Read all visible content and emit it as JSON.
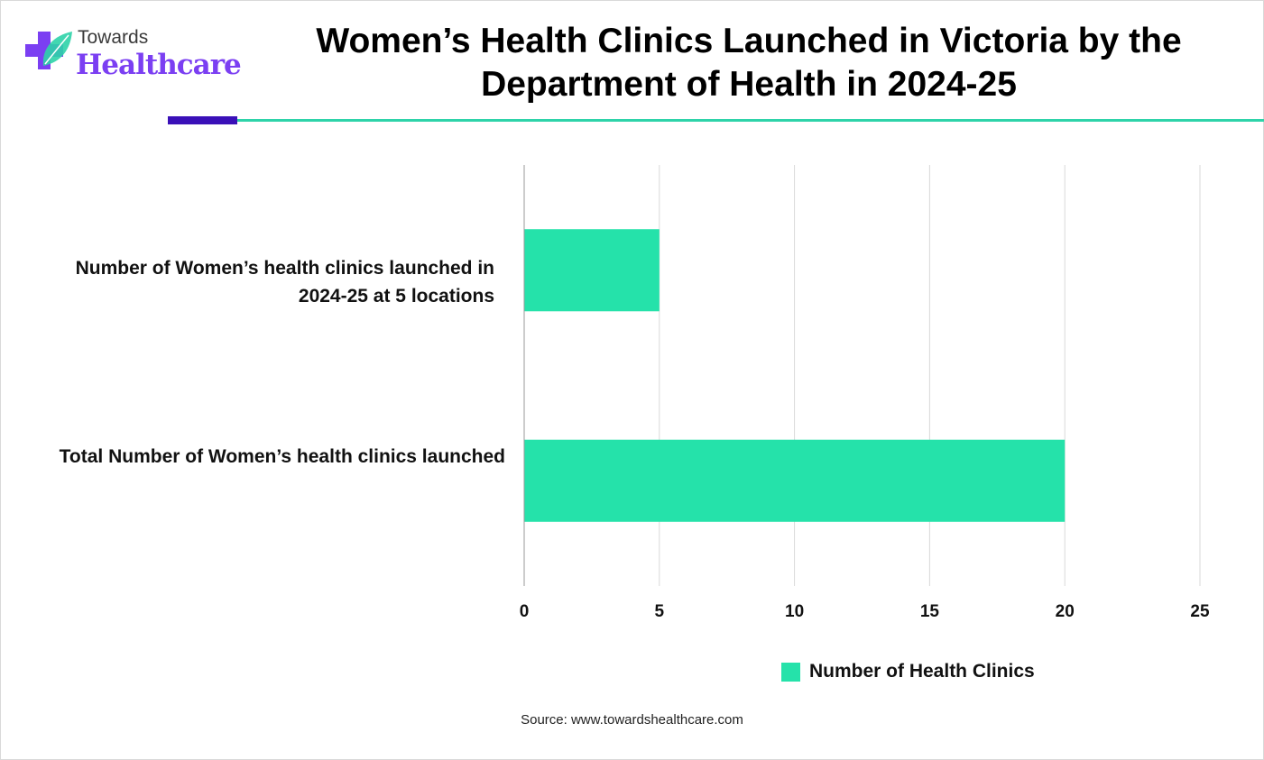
{
  "brand": {
    "line1": "Towards",
    "line2": "Healthcare",
    "colors": {
      "purple": "#7b3ff2",
      "teal": "#2ed3a9",
      "navy": "#3a10b8"
    }
  },
  "title": "Women’s Health Clinics Launched in Victoria by the Department of Health in 2024-25",
  "chart_data": {
    "type": "bar",
    "orientation": "horizontal",
    "categories": [
      "Number of Women’s health clinics launched in 2024-25 at 5 locations",
      "Total Number of Women’s health clinics launched"
    ],
    "series": [
      {
        "name": "Number of Health Clinics",
        "values": [
          5,
          20
        ],
        "color": "#25e2aa"
      }
    ],
    "xlim": [
      0,
      25
    ],
    "xticks": [
      0,
      5,
      10,
      15,
      20,
      25
    ],
    "grid": true,
    "legend_position": "bottom"
  },
  "source": "Source: www.towardshealthcare.com"
}
